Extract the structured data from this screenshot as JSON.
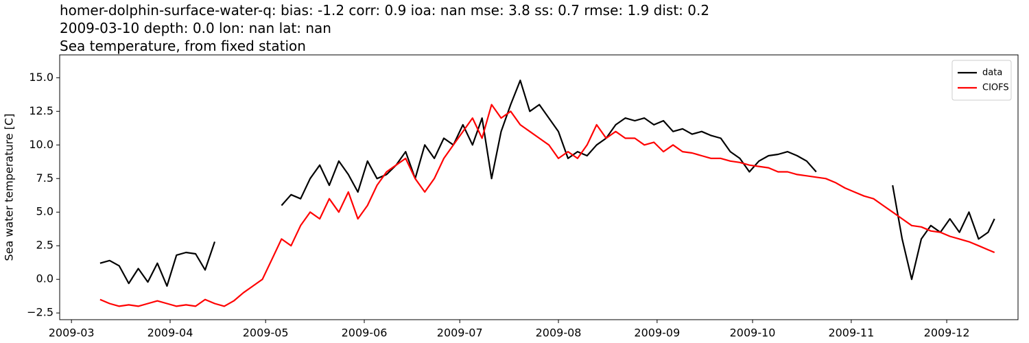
{
  "chart_data": {
    "type": "line",
    "title_lines": [
      "homer-dolphin-surface-water-q: bias: -1.2  corr: 0.9  ioa: nan  mse: 3.8  ss: 0.7  rmse: 1.9  dist: 0.2",
      "2009-03-10 depth: 0.0 lon: nan lat: nan",
      "Sea temperature, from fixed station"
    ],
    "ylabel": "Sea water temperature [C]",
    "x": [
      69,
      72,
      75,
      78,
      81,
      84,
      87,
      90,
      93,
      96,
      99,
      102,
      105,
      108,
      111,
      114,
      117,
      120,
      123,
      126,
      129,
      132,
      135,
      138,
      141,
      144,
      147,
      150,
      153,
      156,
      159,
      162,
      165,
      168,
      171,
      174,
      177,
      180,
      183,
      186,
      189,
      192,
      195,
      198,
      201,
      204,
      207,
      210,
      213,
      216,
      219,
      222,
      225,
      228,
      231,
      234,
      237,
      240,
      243,
      246,
      249,
      252,
      255,
      258,
      261,
      264,
      267,
      270,
      273,
      276,
      279,
      282,
      285,
      288,
      291,
      294,
      297,
      300,
      303,
      306,
      309,
      312,
      315,
      318,
      321,
      324,
      327,
      330,
      333,
      336,
      339,
      342,
      345,
      348,
      350
    ],
    "series": [
      {
        "name": "data",
        "color": "#000000",
        "values": [
          1.2,
          1.4,
          1.0,
          -0.3,
          0.8,
          -0.2,
          1.2,
          -0.5,
          1.8,
          2.0,
          1.9,
          0.7,
          2.8,
          null,
          null,
          null,
          null,
          null,
          null,
          5.5,
          6.3,
          6.0,
          7.5,
          8.5,
          7.0,
          8.8,
          7.8,
          6.5,
          8.8,
          7.5,
          7.8,
          8.5,
          9.5,
          7.5,
          10.0,
          9.0,
          10.5,
          10.0,
          11.5,
          10.0,
          12.0,
          7.5,
          11.0,
          13.0,
          14.8,
          12.5,
          13.0,
          12.0,
          11.0,
          9.0,
          9.5,
          9.2,
          10.0,
          10.5,
          11.5,
          12.0,
          11.8,
          12.0,
          11.5,
          11.8,
          11.0,
          11.2,
          10.8,
          11.0,
          10.7,
          10.5,
          9.5,
          9.0,
          8.0,
          8.8,
          9.2,
          9.3,
          9.5,
          9.2,
          8.8,
          8.0,
          null,
          null,
          null,
          null,
          null,
          null,
          null,
          7.0,
          3.0,
          0.0,
          3.0,
          4.0,
          3.5,
          4.5,
          3.5,
          5.0,
          3.0,
          3.5,
          4.5
        ]
      },
      {
        "name": "CIOFS",
        "color": "#ff0000",
        "values": [
          -1.5,
          -1.8,
          -2.0,
          -1.9,
          -2.0,
          -1.8,
          -1.6,
          -1.8,
          -2.0,
          -1.9,
          -2.0,
          -1.5,
          -1.8,
          -2.0,
          -1.6,
          -1.0,
          -0.5,
          0.0,
          1.5,
          3.0,
          2.5,
          4.0,
          5.0,
          4.5,
          6.0,
          5.0,
          6.5,
          4.5,
          5.5,
          7.0,
          8.0,
          8.5,
          9.0,
          7.5,
          6.5,
          7.5,
          9.0,
          10.0,
          11.0,
          12.0,
          10.5,
          13.0,
          12.0,
          12.5,
          11.5,
          11.0,
          10.5,
          10.0,
          9.0,
          9.5,
          9.0,
          10.0,
          11.5,
          10.5,
          11.0,
          10.5,
          10.5,
          10.0,
          10.2,
          9.5,
          10.0,
          9.5,
          9.4,
          9.2,
          9.0,
          9.0,
          8.8,
          8.7,
          8.5,
          8.4,
          8.3,
          8.0,
          8.0,
          7.8,
          7.7,
          7.6,
          7.5,
          7.2,
          6.8,
          6.5,
          6.2,
          6.0,
          5.5,
          5.0,
          4.5,
          4.0,
          3.9,
          3.6,
          3.5,
          3.2,
          3.0,
          2.8,
          2.5,
          2.2,
          2.0
        ]
      }
    ],
    "xlim": [
      56.3,
      357.4
    ],
    "xticks": [
      {
        "value": 60,
        "label": "2009-03"
      },
      {
        "value": 91,
        "label": "2009-04"
      },
      {
        "value": 121,
        "label": "2009-05"
      },
      {
        "value": 152,
        "label": "2009-06"
      },
      {
        "value": 182,
        "label": "2009-07"
      },
      {
        "value": 213,
        "label": "2009-08"
      },
      {
        "value": 244,
        "label": "2009-09"
      },
      {
        "value": 274,
        "label": "2009-10"
      },
      {
        "value": 305,
        "label": "2009-11"
      },
      {
        "value": 335,
        "label": "2009-12"
      }
    ],
    "ylim": [
      -3.0,
      16.7
    ],
    "yticks": [
      {
        "value": -2.5,
        "label": "−2.5"
      },
      {
        "value": 0,
        "label": "0.0"
      },
      2.5,
      {
        "value": 5,
        "label": "5.0"
      },
      7.5,
      {
        "value": 10,
        "label": "10.0"
      },
      12.5,
      {
        "value": 15,
        "label": "15.0"
      }
    ],
    "grid": false,
    "legend": "upper right"
  }
}
